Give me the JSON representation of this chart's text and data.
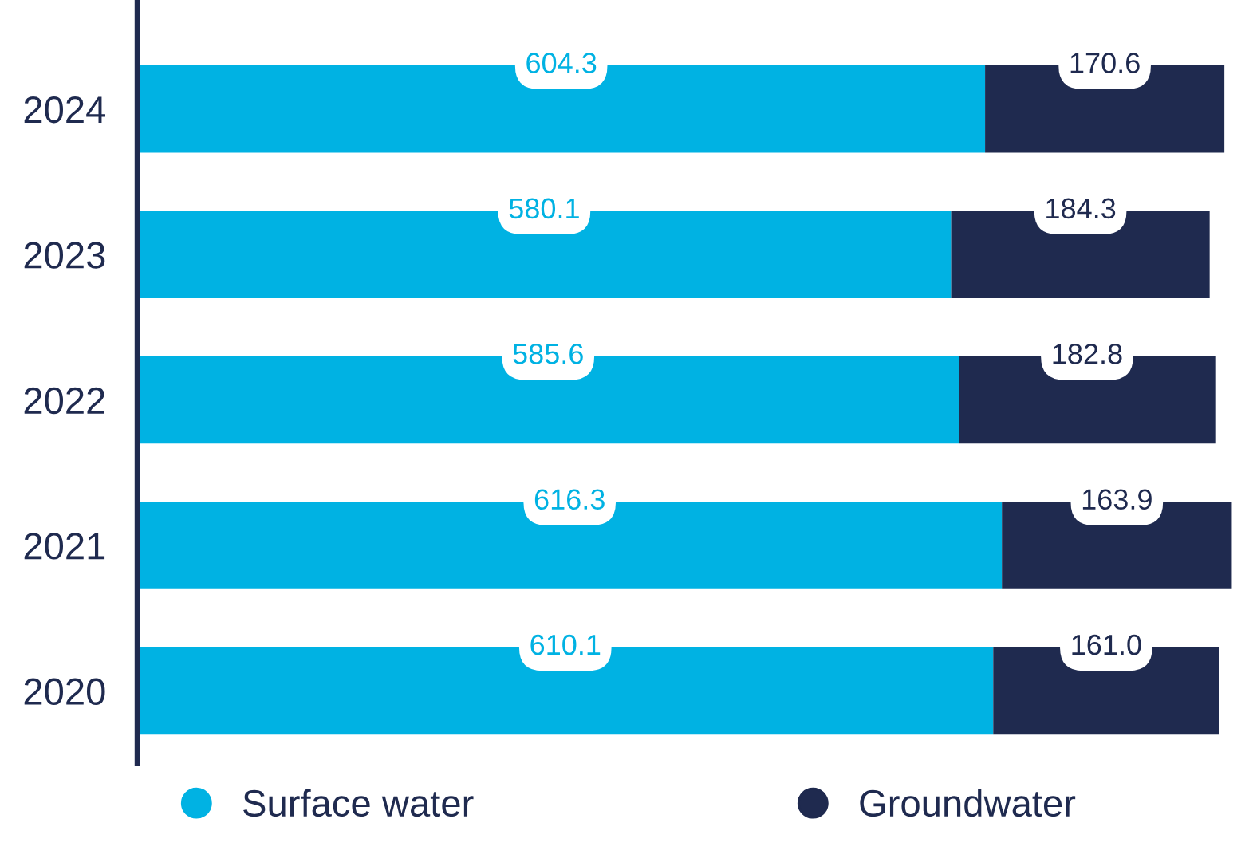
{
  "chart_data": {
    "type": "bar",
    "orientation": "horizontal",
    "stacked": true,
    "categories": [
      "2024",
      "2023",
      "2022",
      "2021",
      "2020"
    ],
    "series": [
      {
        "name": "Surface water",
        "color": "#00b2e3",
        "values": [
          604.3,
          580.1,
          585.6,
          616.3,
          610.1
        ],
        "value_labels": [
          "604.3",
          "580.1",
          "585.6",
          "616.3",
          "610.1"
        ]
      },
      {
        "name": "Groundwater",
        "color": "#1f2a4f",
        "values": [
          170.6,
          184.3,
          182.8,
          163.9,
          161.0
        ],
        "value_labels": [
          "170.6",
          "184.3",
          "182.8",
          "163.9",
          "161.0"
        ]
      }
    ],
    "legend": "bottom",
    "grid": false
  }
}
